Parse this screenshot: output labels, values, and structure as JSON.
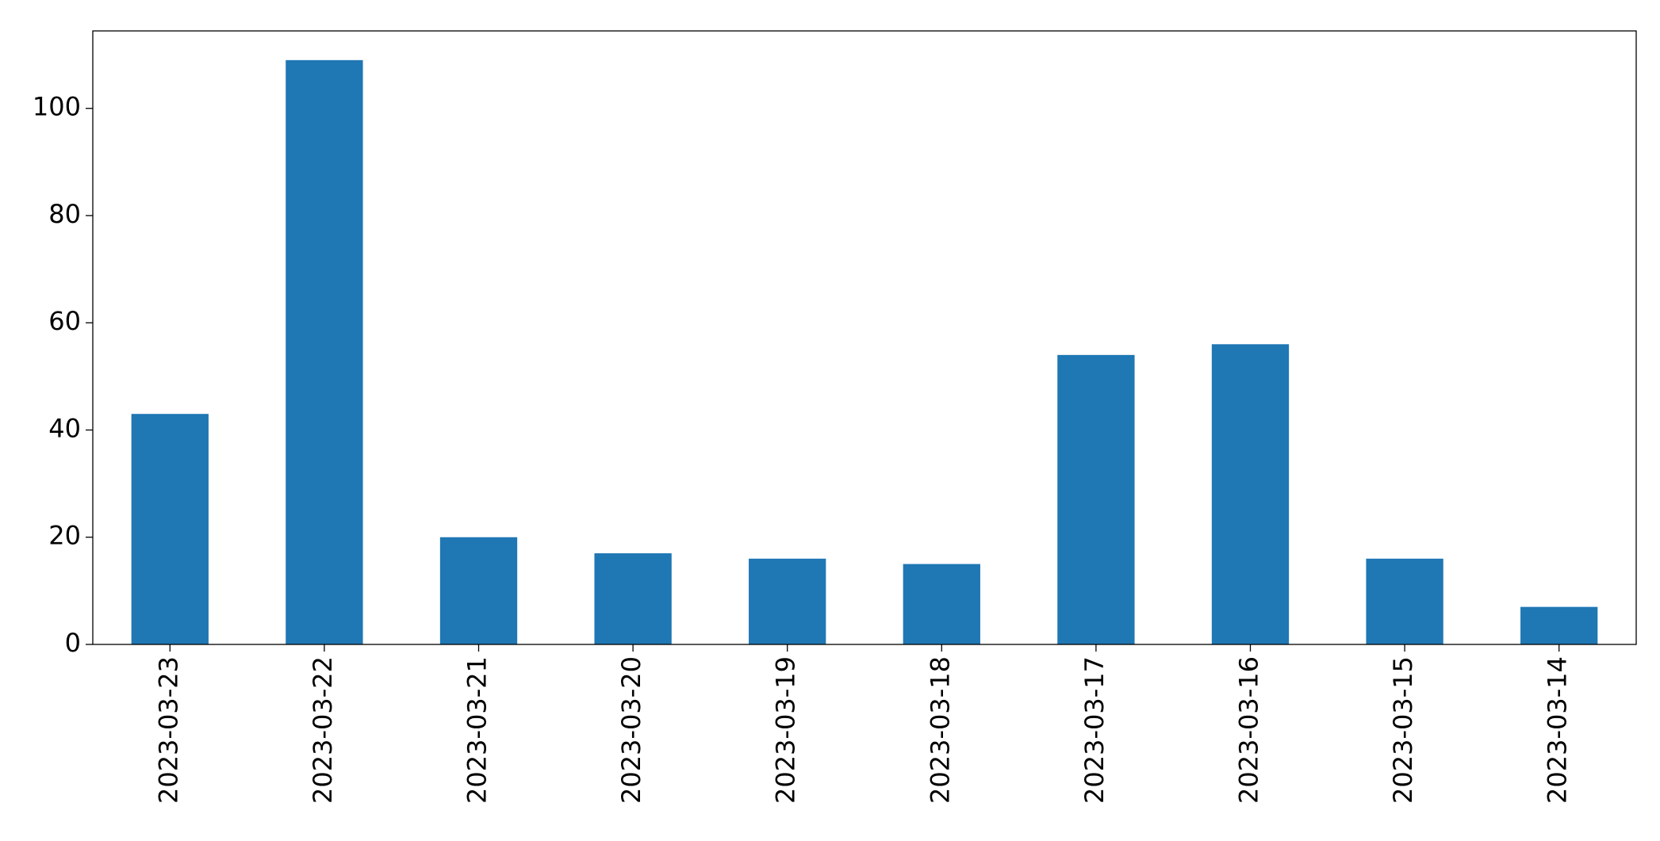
{
  "chart_data": {
    "type": "bar",
    "categories": [
      "2023-03-23",
      "2023-03-22",
      "2023-03-21",
      "2023-03-20",
      "2023-03-19",
      "2023-03-18",
      "2023-03-17",
      "2023-03-16",
      "2023-03-15",
      "2023-03-14"
    ],
    "values": [
      43,
      109,
      20,
      17,
      16,
      15,
      54,
      56,
      16,
      7
    ],
    "color": "#1f77b4",
    "ylim": [
      0,
      114.45
    ],
    "yticks": [
      0,
      20,
      40,
      60,
      80,
      100
    ],
    "grid": false
  }
}
